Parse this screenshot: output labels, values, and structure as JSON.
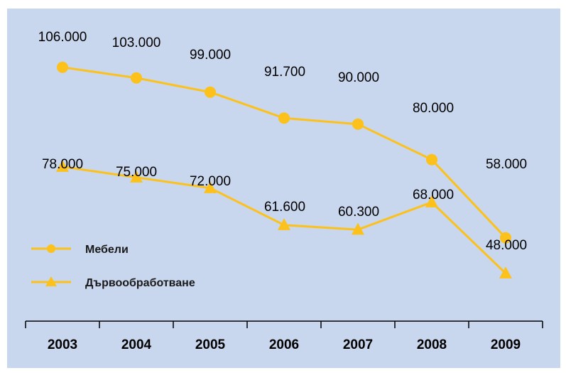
{
  "colors": {
    "background": "#c8d6ee",
    "series_line": "#fcc21b",
    "axis": "#000000"
  },
  "chart_data": {
    "type": "line",
    "title": "",
    "xlabel": "",
    "ylabel": "",
    "categories": [
      "2003",
      "2004",
      "2005",
      "2006",
      "2007",
      "2008",
      "2009"
    ],
    "series": [
      {
        "name": "Мебели",
        "marker": "circle",
        "values": [
          106000,
          103000,
          99000,
          91700,
          90000,
          80000,
          58000
        ],
        "labels": [
          "106.000",
          "103.000",
          "99.000",
          "91.700",
          "90.000",
          "80.000",
          "58.000"
        ]
      },
      {
        "name": "Дървообработване",
        "marker": "triangle",
        "values": [
          78000,
          75000,
          72000,
          61600,
          60300,
          68000,
          48000
        ],
        "labels": [
          "78.000",
          "75.000",
          "72.000",
          "61.600",
          "60.300",
          "68.000",
          "48.000"
        ]
      }
    ],
    "ylim": [
      0,
      120000
    ],
    "grid": false,
    "legend_position": "left"
  }
}
